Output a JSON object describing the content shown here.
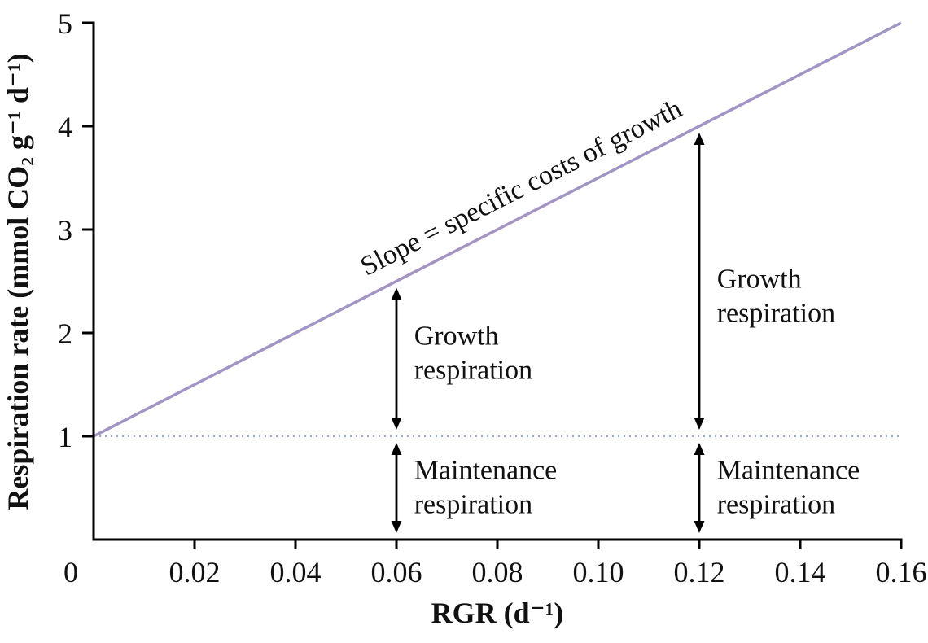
{
  "chart_data": {
    "type": "line",
    "title": "",
    "xlabel": "RGR (d⁻¹)",
    "ylabel": "Respiration rate (mmol CO₂ g⁻¹ d⁻¹)",
    "xlim": [
      0,
      0.16
    ],
    "ylim": [
      0,
      5
    ],
    "grid": false,
    "legend": "none",
    "axis_color": "#000000",
    "text_color": "#111111",
    "x_ticks": [
      0,
      0.02,
      0.04,
      0.06,
      0.08,
      0.1,
      0.12,
      0.14,
      0.16
    ],
    "x_tick_labels": [
      "0",
      "0.02",
      "0.04",
      "0.06",
      "0.08",
      "0.10",
      "0.12",
      "0.14",
      "0.16"
    ],
    "y_ticks": [
      1,
      2,
      3,
      4,
      5
    ],
    "y_tick_labels": [
      "1",
      "2",
      "3",
      "4",
      "5"
    ],
    "series": [
      {
        "name": "respiration-vs-rgr-line",
        "x": [
          0,
          0.16
        ],
        "y": [
          1,
          5
        ],
        "color": "#a294c4",
        "width": 3.5
      }
    ],
    "reference_lines": [
      {
        "name": "maintenance-respiration-level",
        "y": 1,
        "style": "dotted",
        "color": "#8fa0c9"
      }
    ],
    "slope_label": {
      "text": "Slope = specific costs of growth",
      "x": 0.0855,
      "y": 3.33,
      "rotation_deg": -27
    },
    "arrows": [
      {
        "name": "growth-respiration-arrow-left",
        "x": 0.06,
        "y1": 1,
        "y2": 2.5
      },
      {
        "name": "maintenance-respiration-arrow-left",
        "x": 0.06,
        "y1": 0,
        "y2": 1
      },
      {
        "name": "growth-respiration-arrow-right",
        "x": 0.12,
        "y1": 1,
        "y2": 4
      },
      {
        "name": "maintenance-respiration-arrow-right",
        "x": 0.12,
        "y1": 0,
        "y2": 1
      }
    ],
    "annotations": [
      {
        "name": "growth-respiration-label-left",
        "lines": [
          "Growth",
          "respiration"
        ],
        "x": 0.0635,
        "y": 1.8
      },
      {
        "name": "maintenance-respiration-label-left",
        "lines": [
          "Maintenance",
          "respiration"
        ],
        "x": 0.0635,
        "y": 0.5
      },
      {
        "name": "growth-respiration-label-right",
        "lines": [
          "Growth",
          "respiration"
        ],
        "x": 0.1235,
        "y": 2.35
      },
      {
        "name": "maintenance-respiration-label-right",
        "lines": [
          "Maintenance",
          "respiration"
        ],
        "x": 0.1235,
        "y": 0.5
      }
    ]
  }
}
